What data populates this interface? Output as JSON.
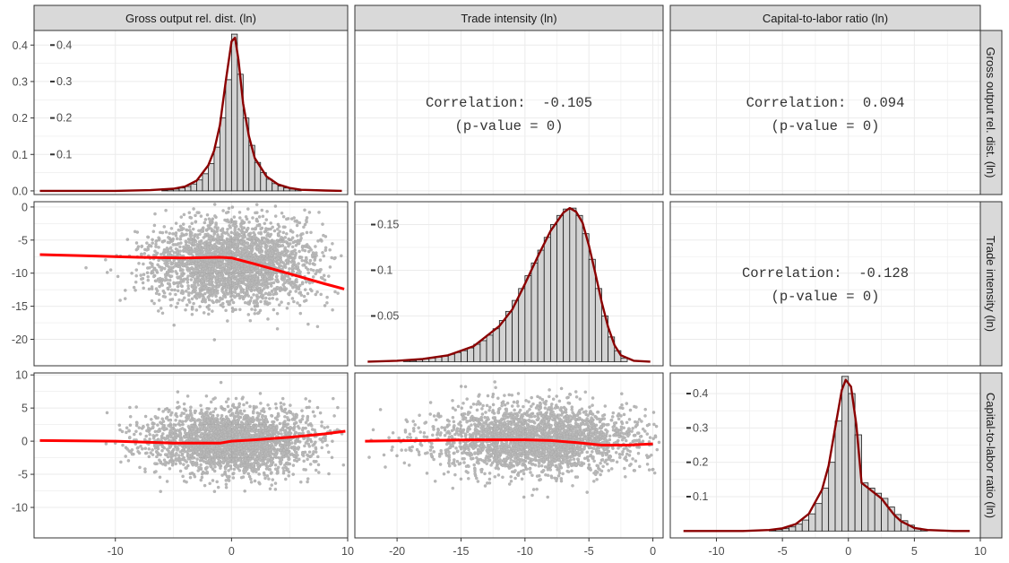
{
  "variables": [
    "Gross output rel. dist. (ln)",
    "Trade intensity (ln)",
    "Capital-to-labor ratio (ln)"
  ],
  "correlations": [
    {
      "row": 0,
      "col": 1,
      "label": "Correlation:",
      "value": "-0.105",
      "p_label": "(p-value = 0)"
    },
    {
      "row": 0,
      "col": 2,
      "label": "Correlation:",
      "value": "0.094",
      "p_label": "(p-value = 0)"
    },
    {
      "row": 1,
      "col": 2,
      "label": "Correlation:",
      "value": "-0.128",
      "p_label": "(p-value = 0)"
    }
  ],
  "colors": {
    "strip_fill": "#d9d9d9",
    "border": "#333333",
    "grid": "#ebebeb",
    "hist_fill": "#d3d3d3",
    "density": "#8b0000",
    "smooth": "#ff0000",
    "points": "#7f7f7f"
  },
  "chart_data": [
    {
      "type": "histogram",
      "panel": "Gross output rel. dist. (ln) diagonal",
      "x_range": [
        -17,
        10
      ],
      "y_range": [
        -0.01,
        0.44
      ],
      "x_ticks": [
        -10,
        0,
        10
      ],
      "y_ticks": [
        0.0,
        0.1,
        0.2,
        0.3,
        0.4
      ],
      "y_tick_labels": [
        "0.0",
        "0.1",
        "0.2",
        "0.3",
        "0.4"
      ],
      "density_ticks": [
        0.1,
        0.2,
        0.3,
        0.4
      ],
      "density_tick_labels": [
        "0.1",
        "0.2",
        "0.3",
        "0.4"
      ],
      "bins": [
        {
          "x0": -6.0,
          "x1": -5.5,
          "h": 0.002
        },
        {
          "x0": -5.5,
          "x1": -5.0,
          "h": 0.003
        },
        {
          "x0": -5.0,
          "x1": -4.5,
          "h": 0.005
        },
        {
          "x0": -4.5,
          "x1": -4.0,
          "h": 0.008
        },
        {
          "x0": -4.0,
          "x1": -3.5,
          "h": 0.012
        },
        {
          "x0": -3.5,
          "x1": -3.0,
          "h": 0.019
        },
        {
          "x0": -3.0,
          "x1": -2.5,
          "h": 0.03
        },
        {
          "x0": -2.5,
          "x1": -2.0,
          "h": 0.047
        },
        {
          "x0": -2.0,
          "x1": -1.5,
          "h": 0.075
        },
        {
          "x0": -1.5,
          "x1": -1.0,
          "h": 0.12
        },
        {
          "x0": -1.0,
          "x1": -0.5,
          "h": 0.2
        },
        {
          "x0": -0.5,
          "x1": 0.0,
          "h": 0.305
        },
        {
          "x0": 0.0,
          "x1": 0.5,
          "h": 0.43
        },
        {
          "x0": 0.5,
          "x1": 1.0,
          "h": 0.32
        },
        {
          "x0": 1.0,
          "x1": 1.5,
          "h": 0.2
        },
        {
          "x0": 1.5,
          "x1": 2.0,
          "h": 0.125
        },
        {
          "x0": 2.0,
          "x1": 2.5,
          "h": 0.078
        },
        {
          "x0": 2.5,
          "x1": 3.0,
          "h": 0.05
        },
        {
          "x0": 3.0,
          "x1": 3.5,
          "h": 0.032
        },
        {
          "x0": 3.5,
          "x1": 4.0,
          "h": 0.02
        },
        {
          "x0": 4.0,
          "x1": 4.5,
          "h": 0.013
        },
        {
          "x0": 4.5,
          "x1": 5.0,
          "h": 0.008
        },
        {
          "x0": 5.0,
          "x1": 5.5,
          "h": 0.005
        },
        {
          "x0": 5.5,
          "x1": 6.0,
          "h": 0.003
        }
      ],
      "density": [
        [
          -16.5,
          0.0
        ],
        [
          -10,
          0.0
        ],
        [
          -7,
          0.002
        ],
        [
          -5,
          0.006
        ],
        [
          -4,
          0.012
        ],
        [
          -3,
          0.028
        ],
        [
          -2,
          0.07
        ],
        [
          -1.5,
          0.11
        ],
        [
          -1,
          0.18
        ],
        [
          -0.5,
          0.3
        ],
        [
          0,
          0.41
        ],
        [
          0.3,
          0.42
        ],
        [
          0.6,
          0.36
        ],
        [
          1,
          0.24
        ],
        [
          1.5,
          0.15
        ],
        [
          2,
          0.09
        ],
        [
          3,
          0.04
        ],
        [
          4,
          0.018
        ],
        [
          5,
          0.008
        ],
        [
          6,
          0.003
        ],
        [
          8,
          0.001
        ],
        [
          9.5,
          0.0
        ]
      ]
    },
    {
      "type": "histogram",
      "panel": "Trade intensity (ln) diagonal",
      "x_range": [
        -23.3,
        0.8
      ],
      "y_range": [
        -0.0045,
        0.175
      ],
      "x_ticks": [
        -20,
        -15,
        -10,
        -5,
        0
      ],
      "density_ticks": [
        0.05,
        0.1,
        0.15
      ],
      "density_tick_labels": [
        "0.05",
        "0.1",
        "0.15"
      ],
      "bins": [
        {
          "x0": -19.5,
          "x1": -19.0,
          "h": 0.001
        },
        {
          "x0": -19.0,
          "x1": -18.5,
          "h": 0.001
        },
        {
          "x0": -18.5,
          "x1": -18.0,
          "h": 0.002
        },
        {
          "x0": -18.0,
          "x1": -17.5,
          "h": 0.003
        },
        {
          "x0": -17.5,
          "x1": -17.0,
          "h": 0.004
        },
        {
          "x0": -17.0,
          "x1": -16.5,
          "h": 0.005
        },
        {
          "x0": -16.5,
          "x1": -16.0,
          "h": 0.006
        },
        {
          "x0": -16.0,
          "x1": -15.5,
          "h": 0.008
        },
        {
          "x0": -15.5,
          "x1": -15.0,
          "h": 0.01
        },
        {
          "x0": -15.0,
          "x1": -14.5,
          "h": 0.012
        },
        {
          "x0": -14.5,
          "x1": -14.0,
          "h": 0.015
        },
        {
          "x0": -14.0,
          "x1": -13.5,
          "h": 0.019
        },
        {
          "x0": -13.5,
          "x1": -13.0,
          "h": 0.023
        },
        {
          "x0": -13.0,
          "x1": -12.5,
          "h": 0.029
        },
        {
          "x0": -12.5,
          "x1": -12.0,
          "h": 0.036
        },
        {
          "x0": -12.0,
          "x1": -11.5,
          "h": 0.045
        },
        {
          "x0": -11.5,
          "x1": -11.0,
          "h": 0.055
        },
        {
          "x0": -11.0,
          "x1": -10.5,
          "h": 0.067
        },
        {
          "x0": -10.5,
          "x1": -10.0,
          "h": 0.08
        },
        {
          "x0": -10.0,
          "x1": -9.5,
          "h": 0.094
        },
        {
          "x0": -9.5,
          "x1": -9.0,
          "h": 0.108
        },
        {
          "x0": -9.0,
          "x1": -8.5,
          "h": 0.122
        },
        {
          "x0": -8.5,
          "x1": -8.0,
          "h": 0.136
        },
        {
          "x0": -8.0,
          "x1": -7.5,
          "h": 0.15
        },
        {
          "x0": -7.5,
          "x1": -7.0,
          "h": 0.16
        },
        {
          "x0": -7.0,
          "x1": -6.5,
          "h": 0.167
        },
        {
          "x0": -6.5,
          "x1": -6.0,
          "h": 0.168
        },
        {
          "x0": -6.0,
          "x1": -5.5,
          "h": 0.16
        },
        {
          "x0": -5.5,
          "x1": -5.0,
          "h": 0.14
        },
        {
          "x0": -5.0,
          "x1": -4.5,
          "h": 0.112
        },
        {
          "x0": -4.5,
          "x1": -4.0,
          "h": 0.08
        },
        {
          "x0": -4.0,
          "x1": -3.5,
          "h": 0.05
        },
        {
          "x0": -3.5,
          "x1": -3.0,
          "h": 0.027
        },
        {
          "x0": -3.0,
          "x1": -2.5,
          "h": 0.012
        },
        {
          "x0": -2.5,
          "x1": -2.0,
          "h": 0.004
        }
      ],
      "density": [
        [
          -22.3,
          0.0
        ],
        [
          -20,
          0.001
        ],
        [
          -18,
          0.003
        ],
        [
          -16,
          0.007
        ],
        [
          -14,
          0.017
        ],
        [
          -12,
          0.039
        ],
        [
          -11,
          0.057
        ],
        [
          -10,
          0.085
        ],
        [
          -9,
          0.115
        ],
        [
          -8,
          0.143
        ],
        [
          -7,
          0.163
        ],
        [
          -6.5,
          0.168
        ],
        [
          -6,
          0.164
        ],
        [
          -5.5,
          0.152
        ],
        [
          -5,
          0.127
        ],
        [
          -4.5,
          0.097
        ],
        [
          -4,
          0.065
        ],
        [
          -3.5,
          0.038
        ],
        [
          -3,
          0.018
        ],
        [
          -2.5,
          0.007
        ],
        [
          -1.5,
          0.001
        ],
        [
          -0.2,
          0.0
        ]
      ]
    },
    {
      "type": "histogram",
      "panel": "Capital-to-labor ratio (ln) diagonal",
      "x_range": [
        -13.5,
        10
      ],
      "y_range": [
        -0.02,
        0.46
      ],
      "x_ticks": [
        -10,
        -5,
        0,
        5,
        10
      ],
      "density_ticks": [
        0.1,
        0.2,
        0.3,
        0.4
      ],
      "density_tick_labels": [
        "0.1",
        "0.2",
        "0.3",
        "0.4"
      ],
      "bins": [
        {
          "x0": -6.0,
          "x1": -5.5,
          "h": 0.002
        },
        {
          "x0": -5.5,
          "x1": -5.0,
          "h": 0.004
        },
        {
          "x0": -5.0,
          "x1": -4.5,
          "h": 0.007
        },
        {
          "x0": -4.5,
          "x1": -4.0,
          "h": 0.012
        },
        {
          "x0": -4.0,
          "x1": -3.5,
          "h": 0.02
        },
        {
          "x0": -3.5,
          "x1": -3.0,
          "h": 0.032
        },
        {
          "x0": -3.0,
          "x1": -2.5,
          "h": 0.05
        },
        {
          "x0": -2.5,
          "x1": -2.0,
          "h": 0.08
        },
        {
          "x0": -2.0,
          "x1": -1.5,
          "h": 0.125
        },
        {
          "x0": -1.5,
          "x1": -1.0,
          "h": 0.2
        },
        {
          "x0": -1.0,
          "x1": -0.5,
          "h": 0.32
        },
        {
          "x0": -0.5,
          "x1": 0.0,
          "h": 0.45
        },
        {
          "x0": 0.0,
          "x1": 0.5,
          "h": 0.4
        },
        {
          "x0": 0.5,
          "x1": 1.0,
          "h": 0.28
        },
        {
          "x0": 1.0,
          "x1": 1.5,
          "h": 0.14
        },
        {
          "x0": 1.5,
          "x1": 2.0,
          "h": 0.125
        },
        {
          "x0": 2.0,
          "x1": 2.5,
          "h": 0.11
        },
        {
          "x0": 2.5,
          "x1": 3.0,
          "h": 0.095
        },
        {
          "x0": 3.0,
          "x1": 3.5,
          "h": 0.07
        },
        {
          "x0": 3.5,
          "x1": 4.0,
          "h": 0.048
        },
        {
          "x0": 4.0,
          "x1": 4.5,
          "h": 0.03
        },
        {
          "x0": 4.5,
          "x1": 5.0,
          "h": 0.017
        },
        {
          "x0": 5.0,
          "x1": 5.5,
          "h": 0.008
        },
        {
          "x0": 5.5,
          "x1": 6.0,
          "h": 0.003
        }
      ],
      "density": [
        [
          -12.5,
          0.0
        ],
        [
          -8,
          0.0
        ],
        [
          -6,
          0.003
        ],
        [
          -5,
          0.008
        ],
        [
          -4,
          0.02
        ],
        [
          -3,
          0.05
        ],
        [
          -2,
          0.12
        ],
        [
          -1.5,
          0.19
        ],
        [
          -1,
          0.3
        ],
        [
          -0.5,
          0.41
        ],
        [
          -0.2,
          0.44
        ],
        [
          0.2,
          0.42
        ],
        [
          0.6,
          0.31
        ],
        [
          1,
          0.14
        ],
        [
          1.5,
          0.125
        ],
        [
          2,
          0.11
        ],
        [
          2.5,
          0.095
        ],
        [
          3,
          0.07
        ],
        [
          3.5,
          0.046
        ],
        [
          4,
          0.028
        ],
        [
          5,
          0.009
        ],
        [
          6,
          0.003
        ],
        [
          8,
          0.0
        ],
        [
          9.2,
          0.0
        ]
      ]
    },
    {
      "type": "scatter",
      "panel": "Trade intensity (ln) vs Gross output rel. dist. (ln)",
      "x_range": [
        -17,
        10
      ],
      "y_range": [
        -24,
        0.8
      ],
      "x_ticks": [
        -10,
        0,
        10
      ],
      "y_ticks": [
        0,
        -5,
        -10,
        -15,
        -20
      ],
      "y_tick_labels": [
        "0",
        "-5",
        "-10",
        "-15",
        "-20"
      ],
      "smooth": [
        [
          -16.5,
          -7.2
        ],
        [
          -12,
          -7.4
        ],
        [
          -8,
          -7.6
        ],
        [
          -4,
          -7.7
        ],
        [
          -1,
          -7.6
        ],
        [
          0,
          -7.7
        ],
        [
          2,
          -8.6
        ],
        [
          4,
          -9.6
        ],
        [
          6,
          -10.6
        ],
        [
          8,
          -11.6
        ],
        [
          9.7,
          -12.4
        ]
      ],
      "cloud": {
        "x_center": 0,
        "x_spread": 3.5,
        "y_center": -8.5,
        "y_spread": 3.2
      }
    },
    {
      "type": "scatter",
      "panel": "Capital-to-labor ratio (ln) vs Gross output rel. dist. (ln)",
      "x_range": [
        -17,
        10
      ],
      "y_range": [
        -14.6,
        10.3
      ],
      "x_ticks": [
        -10,
        0,
        10
      ],
      "y_ticks": [
        10,
        5,
        0,
        -5,
        -10
      ],
      "y_tick_labels": [
        "10",
        "5",
        "0",
        "-5",
        "-10"
      ],
      "smooth": [
        [
          -16.5,
          0.1
        ],
        [
          -10,
          0.0
        ],
        [
          -5,
          -0.3
        ],
        [
          -1,
          -0.3
        ],
        [
          0,
          0.0
        ],
        [
          2,
          0.2
        ],
        [
          5,
          0.6
        ],
        [
          8,
          1.1
        ],
        [
          9.8,
          1.5
        ]
      ],
      "cloud": {
        "x_center": 0,
        "x_spread": 3.5,
        "y_center": 0,
        "y_spread": 2.4
      }
    },
    {
      "type": "scatter",
      "panel": "Capital-to-labor ratio (ln) vs Trade intensity (ln)",
      "x_range": [
        -23.3,
        0.8
      ],
      "y_range": [
        -14.6,
        10.3
      ],
      "x_ticks": [
        -20,
        -15,
        -10,
        -5,
        0
      ],
      "smooth": [
        [
          -22.5,
          0.0
        ],
        [
          -18,
          0.1
        ],
        [
          -14,
          0.2
        ],
        [
          -10,
          0.2
        ],
        [
          -8,
          0.1
        ],
        [
          -6,
          -0.2
        ],
        [
          -4,
          -0.6
        ],
        [
          -2,
          -0.6
        ],
        [
          0,
          -0.4
        ]
      ],
      "cloud": {
        "x_center": -9,
        "x_spread": 4.0,
        "y_center": 0.3,
        "y_spread": 2.5
      }
    }
  ]
}
